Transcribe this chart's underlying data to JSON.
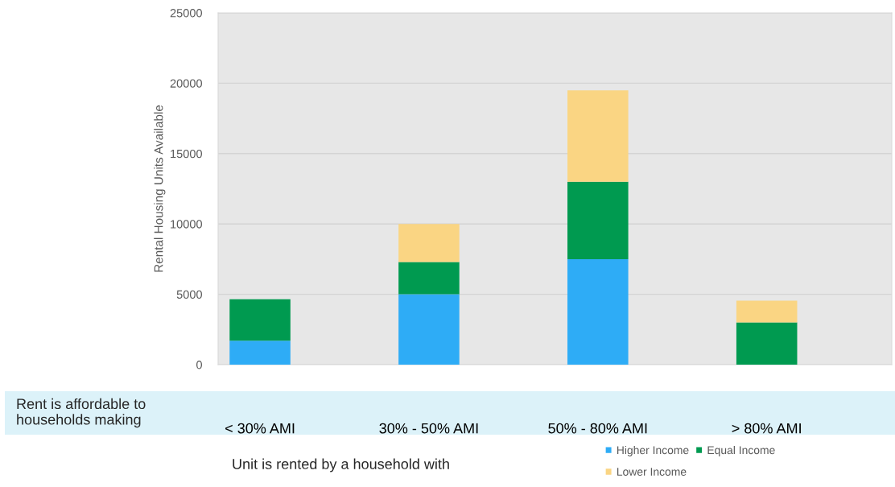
{
  "chart_data": {
    "type": "bar",
    "stacked": true,
    "ylabel": "Rental Housing Units Available",
    "categories": [
      "< 30% AMI",
      "30% - 50% AMI",
      "50% - 80% AMI",
      "> 80% AMI"
    ],
    "series": [
      {
        "name": "Higher Income",
        "color": "#2eacf6",
        "values": [
          1700,
          5000,
          7500,
          null
        ]
      },
      {
        "name": "Equal Income",
        "color": "#009a50",
        "values": [
          2950,
          2300,
          5500,
          3000
        ]
      },
      {
        "name": "Lower Income",
        "color": "#fad583",
        "values": [
          null,
          2700,
          6500,
          1550
        ]
      }
    ],
    "ylim": [
      0,
      25000
    ],
    "yticks": [
      0,
      5000,
      10000,
      15000,
      20000,
      25000
    ],
    "grid": "y",
    "legend": "bottom",
    "annotations": [
      "Rent is affordable to\nhouseholds making",
      "Unit is rented by a household with"
    ]
  }
}
